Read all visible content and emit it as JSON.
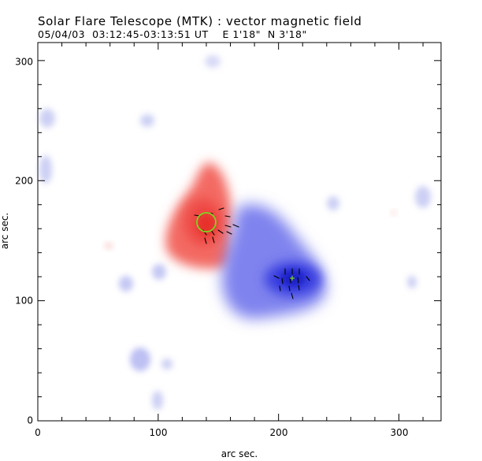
{
  "title": "Solar Flare Telescope (MTK) : vector magnetic field",
  "subtitle": "05/04/03  03:12:45-03:13:51 UT    E 1'18\"  N 3'18\"",
  "axes": {
    "x_label": "arc sec.",
    "y_label": "arc sec.",
    "x_ticks": [
      "0",
      "100",
      "200",
      "300"
    ],
    "y_ticks": [
      "0",
      "100",
      "200",
      "300"
    ],
    "xlim": [
      0,
      335
    ],
    "ylim": [
      0,
      315
    ]
  },
  "colors": {
    "positive_polarity": "#f0504a",
    "negative_polarity": "#3c3ce6",
    "marker_circle": "#7fd420",
    "vectors": "#000000"
  },
  "regions": [
    {
      "name": "positive",
      "cx": 140,
      "cy": 170,
      "rx": 28,
      "ry": 35,
      "polarity": "positive"
    },
    {
      "name": "negative",
      "cx": 205,
      "cy": 130,
      "rx": 45,
      "ry": 38,
      "polarity": "negative"
    }
  ],
  "markers": [
    {
      "kind": "circle",
      "x": 140,
      "y": 165,
      "r": 8
    },
    {
      "kind": "cross",
      "x": 212,
      "y": 118
    }
  ]
}
